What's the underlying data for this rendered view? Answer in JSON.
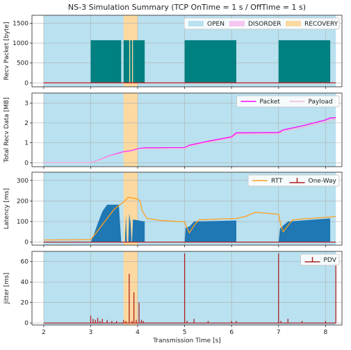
{
  "chart_data": {
    "type": "line",
    "title": "NS-3 Simulation Summary (TCP OnTime = 1 s / OffTime = 1 s)",
    "xlabel": "Transmission Time [s]",
    "xlim": [
      1.75,
      8.35
    ],
    "xticks": [
      2,
      3,
      4,
      5,
      6,
      7,
      8
    ],
    "state_bands": [
      {
        "state": "OPEN",
        "start": 2.0,
        "end": 8.22,
        "color": "#b9e1f0"
      },
      {
        "state": "RECOVERY",
        "start": 3.7,
        "end": 4.0,
        "color": "#fcd9a0"
      }
    ],
    "panels": [
      {
        "id": "recv",
        "ylabel": "Recv Packet [byte]",
        "ylim": [
          -100,
          1700
        ],
        "yticks": [
          0,
          500,
          1000,
          1500
        ],
        "legend": [
          {
            "name": "OPEN",
            "kind": "patch",
            "color": "#b9e1f0"
          },
          {
            "name": "DISORDER",
            "kind": "patch",
            "color": "#f4c7f1"
          },
          {
            "name": "RECOVERY",
            "kind": "patch",
            "color": "#fcd9a0"
          }
        ],
        "series": [
          {
            "kind": "bars",
            "color": "#008080",
            "bars": [
              [
                3.0,
                3.65,
                1072
              ],
              [
                3.7,
                3.82,
                1072
              ],
              [
                3.84,
                3.88,
                1072
              ],
              [
                3.9,
                4.15,
                1072
              ],
              [
                5.0,
                6.1,
                1072
              ],
              [
                7.0,
                8.1,
                1072
              ]
            ]
          },
          {
            "kind": "line",
            "color": "#d62728",
            "points": [
              [
                2.0,
                0
              ],
              [
                8.22,
                0
              ]
            ]
          }
        ]
      },
      {
        "id": "total",
        "ylabel": "Total Recv Data [MB]",
        "ylim": [
          -0.2,
          3.5
        ],
        "yticks": [
          0,
          1,
          2,
          3
        ],
        "legend": [
          {
            "name": "Packet",
            "kind": "line",
            "color": "#ff00ff"
          },
          {
            "name": "Payload",
            "kind": "line",
            "color": "#f5b5d6"
          }
        ],
        "series": [
          {
            "name": "Packet",
            "kind": "line",
            "color": "#ff00ff",
            "points": [
              [
                2.0,
                0
              ],
              [
                3.0,
                0
              ],
              [
                3.2,
                0.15
              ],
              [
                3.4,
                0.35
              ],
              [
                3.7,
                0.55
              ],
              [
                3.8,
                0.58
              ],
              [
                3.9,
                0.63
              ],
              [
                4.0,
                0.7
              ],
              [
                4.1,
                0.74
              ],
              [
                4.2,
                0.75
              ],
              [
                4.5,
                0.75
              ],
              [
                5.0,
                0.76
              ],
              [
                5.1,
                0.87
              ],
              [
                5.5,
                1.08
              ],
              [
                6.0,
                1.3
              ],
              [
                6.1,
                1.5
              ],
              [
                7.0,
                1.52
              ],
              [
                7.1,
                1.65
              ],
              [
                7.5,
                1.85
              ],
              [
                8.0,
                2.15
              ],
              [
                8.1,
                2.25
              ],
              [
                8.22,
                2.26
              ]
            ]
          },
          {
            "name": "Payload",
            "kind": "line",
            "color": "#f5b5d6",
            "points": [
              [
                2.0,
                0
              ],
              [
                3.0,
                0
              ],
              [
                3.2,
                0.14
              ],
              [
                3.4,
                0.33
              ],
              [
                3.7,
                0.52
              ],
              [
                3.8,
                0.55
              ],
              [
                3.9,
                0.6
              ],
              [
                4.0,
                0.67
              ],
              [
                4.1,
                0.7
              ],
              [
                4.2,
                0.71
              ],
              [
                4.5,
                0.71
              ],
              [
                5.0,
                0.72
              ],
              [
                5.1,
                0.83
              ],
              [
                5.5,
                1.03
              ],
              [
                6.0,
                1.25
              ],
              [
                6.1,
                1.43
              ],
              [
                7.0,
                1.45
              ],
              [
                7.1,
                1.58
              ],
              [
                7.5,
                1.77
              ],
              [
                8.0,
                2.06
              ],
              [
                8.1,
                2.16
              ],
              [
                8.22,
                2.17
              ]
            ]
          }
        ]
      },
      {
        "id": "latency",
        "ylabel": "Latency [ms]",
        "ylim": [
          -15,
          340
        ],
        "yticks": [
          0,
          100,
          200,
          300
        ],
        "legend": [
          {
            "name": "RTT",
            "kind": "line",
            "color": "#ff9f1c"
          },
          {
            "name": "One-Way",
            "kind": "stem",
            "color": "#b02020"
          }
        ],
        "series": [
          {
            "kind": "area",
            "color": "#1f77b4",
            "segments": [
              [
                [
                  3.0,
                  0
                ],
                [
                  3.05,
                  25
                ],
                [
                  3.15,
                  90
                ],
                [
                  3.25,
                  150
                ],
                [
                  3.35,
                  182
                ],
                [
                  3.6,
                  182
                ],
                [
                  3.65,
                  0
                ]
              ],
              [
                [
                  3.73,
                  0
                ],
                [
                  3.75,
                  130
                ],
                [
                  3.77,
                  0
                ]
              ],
              [
                [
                  3.8,
                  0
                ],
                [
                  3.82,
                  140
                ],
                [
                  3.85,
                  90
                ],
                [
                  3.87,
                  0
                ]
              ],
              [
                [
                  3.88,
                  0
                ],
                [
                  3.9,
                  110
                ],
                [
                  4.15,
                  100
                ],
                [
                  4.15,
                  0
                ]
              ],
              [
                [
                  5.0,
                  0
                ],
                [
                  5.02,
                  70
                ],
                [
                  5.1,
                  75
                ],
                [
                  5.2,
                  100
                ],
                [
                  6.1,
                  105
                ],
                [
                  6.1,
                  0
                ]
              ],
              [
                [
                  7.0,
                  0
                ],
                [
                  7.03,
                  65
                ],
                [
                  7.12,
                  85
                ],
                [
                  7.2,
                  100
                ],
                [
                  8.1,
                  115
                ],
                [
                  8.1,
                  0
                ]
              ]
            ]
          },
          {
            "name": "RTT",
            "kind": "line",
            "color": "#ff9f1c",
            "points": [
              [
                2.0,
                10
              ],
              [
                3.0,
                12
              ],
              [
                3.1,
                40
              ],
              [
                3.3,
                100
              ],
              [
                3.5,
                160
              ],
              [
                3.7,
                195
              ],
              [
                3.8,
                218
              ],
              [
                4.0,
                210
              ],
              [
                4.05,
                200
              ],
              [
                4.1,
                150
              ],
              [
                4.2,
                115
              ],
              [
                4.5,
                105
              ],
              [
                5.0,
                98
              ],
              [
                5.05,
                70
              ],
              [
                5.1,
                45
              ],
              [
                5.2,
                80
              ],
              [
                5.3,
                108
              ],
              [
                5.5,
                110
              ],
              [
                6.1,
                115
              ],
              [
                6.3,
                125
              ],
              [
                6.5,
                145
              ],
              [
                7.0,
                135
              ],
              [
                7.05,
                80
              ],
              [
                7.1,
                50
              ],
              [
                7.2,
                80
              ],
              [
                7.3,
                108
              ],
              [
                7.5,
                112
              ],
              [
                8.1,
                122
              ],
              [
                8.22,
                125
              ]
            ]
          },
          {
            "name": "One-Way",
            "kind": "line",
            "color": "#b02020",
            "points": [
              [
                2.0,
                0
              ],
              [
                8.22,
                0
              ]
            ]
          }
        ]
      },
      {
        "id": "jitter",
        "ylabel": "Jitter [ms]",
        "ylim": [
          -2,
          70
        ],
        "yticks": [
          0,
          20,
          40,
          60
        ],
        "legend": [
          {
            "name": "PDV",
            "kind": "stem",
            "color": "#b02020"
          }
        ],
        "series": [
          {
            "name": "PDV",
            "kind": "stems",
            "color": "#b02020",
            "points": [
              [
                3.0,
                7
              ],
              [
                3.05,
                4
              ],
              [
                3.1,
                3
              ],
              [
                3.15,
                5
              ],
              [
                3.2,
                2
              ],
              [
                3.25,
                4
              ],
              [
                3.35,
                3
              ],
              [
                3.45,
                2
              ],
              [
                3.55,
                2
              ],
              [
                3.7,
                3
              ],
              [
                3.75,
                2
              ],
              [
                3.82,
                48
              ],
              [
                3.88,
                2
              ],
              [
                3.92,
                30
              ],
              [
                3.97,
                3
              ],
              [
                4.03,
                20
              ],
              [
                4.08,
                3
              ],
              [
                4.12,
                2
              ],
              [
                5.0,
                68
              ],
              [
                5.05,
                2
              ],
              [
                5.2,
                4
              ],
              [
                5.5,
                2
              ],
              [
                6.0,
                2
              ],
              [
                6.1,
                2
              ],
              [
                7.0,
                68
              ],
              [
                7.05,
                2
              ],
              [
                7.2,
                4
              ],
              [
                7.5,
                2
              ],
              [
                8.0,
                2
              ],
              [
                8.22,
                58
              ]
            ]
          },
          {
            "kind": "line",
            "color": "#b02020",
            "points": [
              [
                2.0,
                0
              ],
              [
                8.22,
                0
              ]
            ]
          }
        ]
      }
    ]
  }
}
